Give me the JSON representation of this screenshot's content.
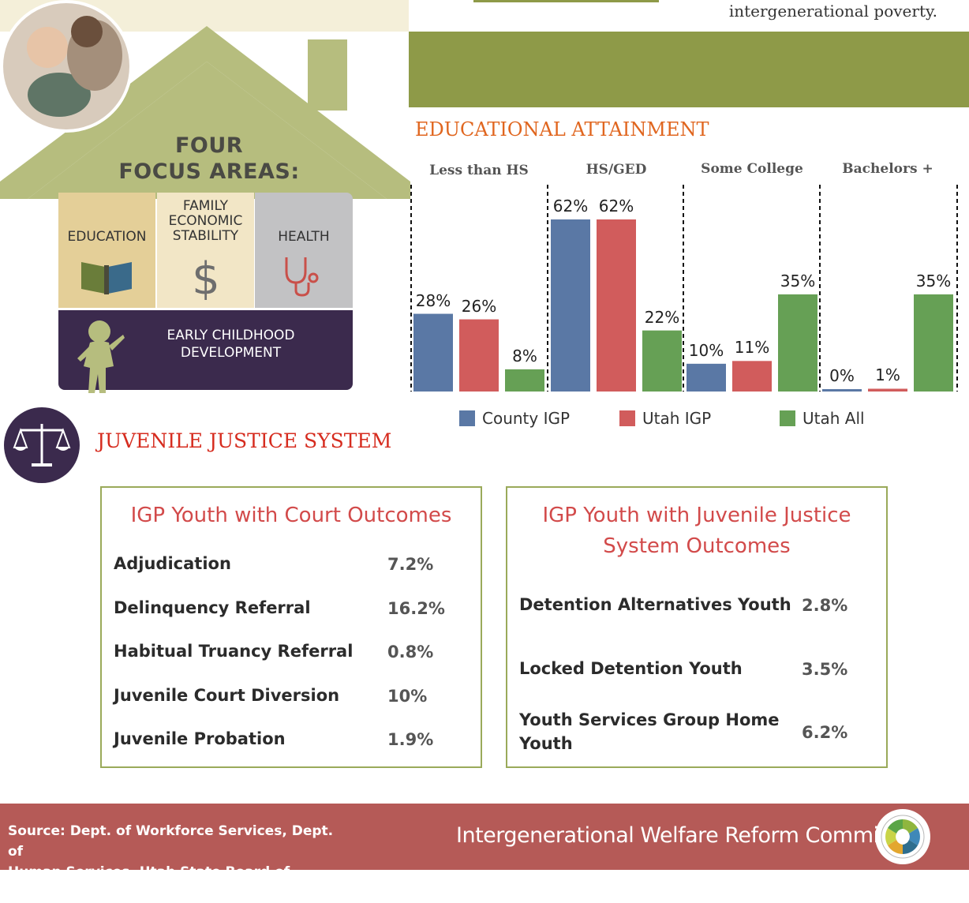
{
  "header": {
    "top_text": "intergenerational poverty."
  },
  "focus_areas": {
    "title_line1": "FOUR",
    "title_line2": "FOCUS AREAS:",
    "education": "EDUCATION",
    "family_line1": "FAMILY",
    "family_line2": "ECONOMIC",
    "family_line3": "STABILITY",
    "health": "HEALTH",
    "early_line1": "EARLY CHILDHOOD",
    "early_line2": "DEVELOPMENT"
  },
  "colors": {
    "county_igp": "#5a78a5",
    "utah_igp": "#d15c5c",
    "utah_all": "#66a055",
    "accent_orange": "#e0661f",
    "band_green": "#8e9a48",
    "footer_red": "#b55a57"
  },
  "chart_data": {
    "type": "bar",
    "title": "EDUCATIONAL ATTAINMENT",
    "categories": [
      "Less than HS",
      "HS/GED",
      "Some College",
      "Bachelors +"
    ],
    "series": [
      {
        "name": "County IGP",
        "values": [
          28,
          62,
          10,
          0
        ],
        "labels": [
          "28%",
          "62%",
          "10%",
          "0%"
        ]
      },
      {
        "name": "Utah IGP",
        "values": [
          26,
          62,
          11,
          1
        ],
        "labels": [
          "26%",
          "62%",
          "11%",
          "1%"
        ]
      },
      {
        "name": "Utah All",
        "values": [
          8,
          22,
          35,
          35
        ],
        "labels": [
          "8%",
          "22%",
          "35%",
          "35%"
        ]
      }
    ],
    "ylim": [
      0,
      62
    ],
    "legend_position": "bottom"
  },
  "juvenile": {
    "title": "JUVENILE JUSTICE SYSTEM",
    "court_panel": {
      "title": "IGP Youth with Court Outcomes",
      "rows": [
        {
          "label": "Adjudication",
          "value": "7.2%"
        },
        {
          "label": "Delinquency Referral",
          "value": "16.2%"
        },
        {
          "label": "Habitual Truancy Referral",
          "value": "0.8%"
        },
        {
          "label": "Juvenile Court Diversion",
          "value": "10%"
        },
        {
          "label": "Juvenile Probation",
          "value": "1.9%"
        }
      ]
    },
    "justice_panel": {
      "title_line1": "IGP Youth with Juvenile Justice",
      "title_line2": "System Outcomes",
      "rows": [
        {
          "label": "Detention Alternatives Youth",
          "value": "2.8%"
        },
        {
          "label": "Locked Detention Youth",
          "value": "3.5%"
        },
        {
          "label_line1": "Youth Services Group Home",
          "label_line2": "Youth",
          "value": "6.2%"
        }
      ]
    }
  },
  "footer": {
    "source_line1": "Source: Dept. of Workforce Services, Dept. of",
    "source_line2": "Human Services, Utah State Board of Education",
    "org": "Intergenerational Welfare Reform Commission"
  }
}
